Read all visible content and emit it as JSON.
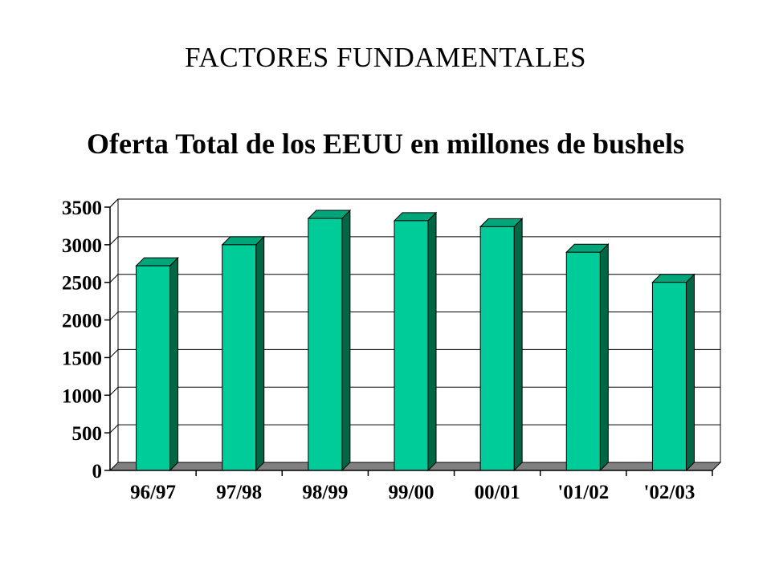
{
  "slide": {
    "title": "FACTORES FUNDAMENTALES"
  },
  "chart_data": {
    "type": "bar",
    "title": "Oferta Total de los EEUU en millones de bushels",
    "xlabel": "",
    "ylabel": "",
    "categories": [
      "96/97",
      "97/98",
      "98/99",
      "99/00",
      "00/01",
      "'01/02",
      "'02/03"
    ],
    "values": [
      2720,
      3000,
      3350,
      3320,
      3240,
      2900,
      2500
    ],
    "ylim": [
      0,
      3500
    ],
    "yticks": [
      0,
      500,
      1000,
      1500,
      2000,
      2500,
      3000,
      3500
    ],
    "grid": true,
    "legend": "none",
    "style": "3d-bar",
    "colors": {
      "bar_front": "#00CC99",
      "bar_side": "#006644",
      "bar_top": "#00A67A",
      "floor": "#808080",
      "grid": "#000000"
    }
  }
}
